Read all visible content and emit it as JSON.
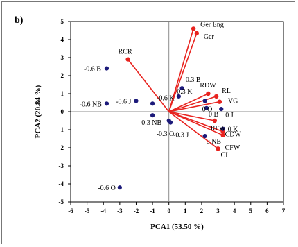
{
  "panel_label": "b)",
  "chart_data": {
    "type": "scatter",
    "xlabel": "PCA1 (53.50 %)",
    "ylabel": "PCA2 (20.84 %)",
    "xlim": [
      -6,
      7
    ],
    "ylim": [
      -5,
      5
    ],
    "x_ticks": [
      -6,
      -5,
      -4,
      -3,
      -2,
      -1,
      0,
      1,
      2,
      3,
      4,
      5,
      6,
      7
    ],
    "y_ticks": [
      -5,
      -4,
      -3,
      -2,
      -1,
      0,
      1,
      2,
      3,
      4,
      5
    ],
    "grid": false,
    "legend": "none",
    "colors": {
      "vector": "#e8231f",
      "point": "#1c1a7a",
      "axis": "#000000",
      "zero_line": "#8c8c8c"
    },
    "loadings": [
      {
        "label": "Ger Eng",
        "x": 1.5,
        "y": 4.6
      },
      {
        "label": "Ger",
        "x": 1.7,
        "y": 4.35
      },
      {
        "label": "RCR",
        "x": -2.5,
        "y": 2.9
      },
      {
        "label": "RDW",
        "x": 2.4,
        "y": 1.0
      },
      {
        "label": "RL",
        "x": 2.9,
        "y": 0.85
      },
      {
        "label": "VG",
        "x": 3.1,
        "y": 0.55
      },
      {
        "label": "RFW",
        "x": 2.8,
        "y": -0.5
      },
      {
        "label": "CDW",
        "x": 3.3,
        "y": -1.1
      },
      {
        "label": "CFW",
        "x": 3.3,
        "y": -1.3
      },
      {
        "label": "CL",
        "x": 3.0,
        "y": -2.05
      }
    ],
    "scores": [
      {
        "label": "-0.6 B",
        "x": -3.8,
        "y": 2.4
      },
      {
        "label": "-0.6 NB",
        "x": -3.8,
        "y": 0.45
      },
      {
        "label": "-0.6 J",
        "x": -2.0,
        "y": 0.6
      },
      {
        "label": "-0.6 K",
        "x": -1.0,
        "y": 0.45
      },
      {
        "label": "-0.3 NB",
        "x": -1.0,
        "y": -0.2
      },
      {
        "label": "-0.6 O",
        "x": -3.0,
        "y": -4.2
      },
      {
        "label": "-0.3 B",
        "x": 0.8,
        "y": 1.3
      },
      {
        "label": "-0.3 K",
        "x": 0.6,
        "y": 0.85
      },
      {
        "label": "0 K",
        "x": 3.3,
        "y": -0.95
      },
      {
        "label": "0 NB",
        "x": 2.2,
        "y": -1.35
      },
      {
        "label": "0 B",
        "x": 2.3,
        "y": 0.2
      },
      {
        "label": "0 J",
        "x": 3.2,
        "y": 0.15
      },
      {
        "label": "-0.3 O",
        "x": 0.0,
        "y": -0.5
      },
      {
        "label": "-0.3 J",
        "x": 0.1,
        "y": -0.6
      },
      {
        "label": "0 O",
        "x": 2.2,
        "y": 0.6
      }
    ]
  }
}
